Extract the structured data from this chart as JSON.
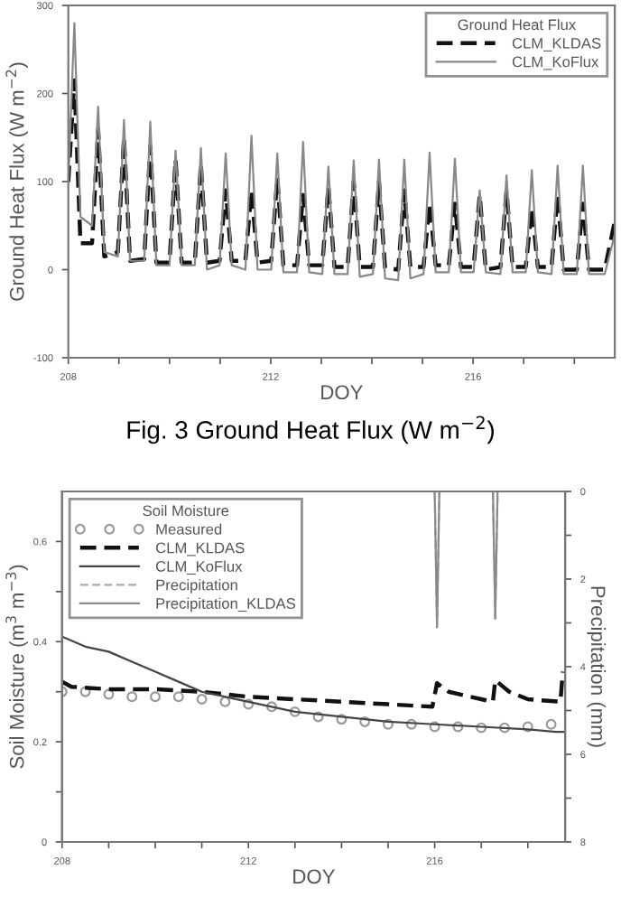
{
  "chart_data": [
    {
      "type": "line",
      "xlabel": "DOY",
      "ylabel": "Ground Heat Flux (W m$^{−2}$)",
      "legend_title": "Ground Heat Flux",
      "legend": "top right",
      "grid": false,
      "annotations": [
        "Fig. 3 Ground Heat Flux (W m$^{−2}$)"
      ],
      "xlim": [
        208,
        218.8
      ],
      "xticks": [
        208,
        {
          "value": 209,
          "label": null
        },
        {
          "value": 210,
          "label": null
        },
        {
          "value": 211,
          "label": null
        },
        212,
        {
          "value": 213,
          "label": null
        },
        {
          "value": 214,
          "label": null
        },
        {
          "value": 215,
          "label": null
        },
        216,
        {
          "value": 217,
          "label": null
        },
        {
          "value": 218,
          "label": null
        }
      ],
      "ylim": [
        -100,
        300
      ],
      "yticks": [
        -100,
        0,
        100,
        200,
        300
      ],
      "x": [
        208.0,
        208.12,
        208.24,
        208.47,
        208.59,
        208.71,
        208.98,
        209.1,
        209.22,
        209.5,
        209.62,
        209.74,
        210.0,
        210.12,
        210.24,
        210.5,
        210.62,
        210.74,
        210.99,
        211.11,
        211.23,
        211.5,
        211.62,
        211.74,
        212.01,
        212.13,
        212.25,
        212.52,
        212.64,
        212.76,
        213.02,
        213.14,
        213.26,
        213.52,
        213.64,
        213.76,
        214.02,
        214.14,
        214.26,
        214.52,
        214.64,
        214.76,
        215.02,
        215.14,
        215.26,
        215.52,
        215.64,
        215.76,
        216.01,
        216.13,
        216.25,
        216.54,
        216.66,
        216.78,
        217.04,
        217.16,
        217.28,
        217.55,
        217.67,
        217.79,
        218.05,
        218.17,
        218.29,
        218.6,
        218.8
      ],
      "series": [
        {
          "name": "CLM_KLDAS",
          "color": "#111111",
          "line_style": "dashed",
          "values": [
            100,
            215,
            30,
            30,
            160,
            15,
            20,
            150,
            10,
            12,
            140,
            8,
            8,
            125,
            8,
            8,
            120,
            8,
            10,
            90,
            10,
            10,
            90,
            8,
            10,
            105,
            5,
            5,
            85,
            5,
            5,
            95,
            3,
            3,
            100,
            3,
            3,
            100,
            2,
            0,
            90,
            3,
            3,
            75,
            5,
            5,
            75,
            3,
            3,
            85,
            0,
            3,
            90,
            3,
            3,
            70,
            3,
            3,
            85,
            0,
            0,
            75,
            0,
            0,
            55
          ]
        },
        {
          "name": "CLM_KoFlux",
          "color": "#888888",
          "line_style": "solid",
          "values": [
            100,
            280,
            60,
            50,
            185,
            20,
            15,
            170,
            10,
            10,
            168,
            5,
            5,
            135,
            5,
            5,
            138,
            0,
            5,
            132,
            5,
            0,
            152,
            0,
            0,
            132,
            -3,
            -3,
            145,
            -3,
            -5,
            117,
            -5,
            -5,
            124,
            -8,
            -5,
            125,
            -10,
            -12,
            125,
            -10,
            -5,
            133,
            -3,
            -3,
            126,
            -3,
            -3,
            90,
            -3,
            -5,
            107,
            -3,
            -3,
            113,
            -3,
            -5,
            118,
            -5,
            -5,
            118,
            -5,
            -5,
            40
          ]
        }
      ]
    },
    {
      "type": "line",
      "xlabel": "DOY",
      "ylabel": "Soil Moisture (m$^{3}$ m$^{−3}$)",
      "y2label": "Precipitation (mm)",
      "legend_title": "Soil Moisture",
      "legend": "top left",
      "grid": false,
      "xlim": [
        208,
        218.8
      ],
      "xticks": [
        208,
        {
          "value": 209,
          "label": null
        },
        {
          "value": 210,
          "label": null
        },
        {
          "value": 211,
          "label": null
        },
        212,
        {
          "value": 213,
          "label": null
        },
        {
          "value": 214,
          "label": null
        },
        {
          "value": 215,
          "label": null
        },
        216,
        {
          "value": 217,
          "label": null
        },
        {
          "value": 218,
          "label": null
        }
      ],
      "ylim": [
        0,
        0.7
      ],
      "yticks": [
        0,
        {
          "value": 0.1,
          "label": null
        },
        0.2,
        {
          "value": 0.3,
          "label": null
        },
        0.4,
        {
          "value": 0.5,
          "label": null
        },
        0.6
      ],
      "y2lim": [
        8,
        0
      ],
      "y2ticks": [
        0,
        {
          "value": 1,
          "label": null
        },
        2,
        {
          "value": 3,
          "label": null
        },
        4,
        {
          "value": 5,
          "label": null
        },
        6,
        {
          "value": 7,
          "label": null
        },
        8
      ],
      "series": [
        {
          "name": "Measured",
          "type": "scatter",
          "marker": "circle",
          "color": "#9a9a9a",
          "x": [
            208.0,
            208.5,
            209.0,
            209.5,
            210.0,
            210.5,
            211.0,
            211.5,
            212.0,
            212.5,
            213.0,
            213.5,
            214.0,
            214.5,
            215.0,
            215.5,
            216.0,
            216.5,
            217.0,
            217.5,
            218.0,
            218.5
          ],
          "values": [
            0.3,
            0.3,
            0.295,
            0.29,
            0.29,
            0.29,
            0.285,
            0.28,
            0.275,
            0.27,
            0.26,
            0.25,
            0.245,
            0.24,
            0.235,
            0.235,
            0.23,
            0.23,
            0.228,
            0.228,
            0.23,
            0.235
          ]
        },
        {
          "name": "CLM_KLDAS",
          "color": "#111111",
          "line_style": "dashed",
          "x": [
            208.0,
            208.2,
            209.0,
            210.0,
            211.0,
            212.0,
            213.0,
            214.0,
            215.0,
            215.95,
            216.05,
            216.3,
            217.0,
            217.25,
            217.3,
            217.6,
            218.0,
            218.7,
            218.75
          ],
          "values": [
            0.32,
            0.31,
            0.305,
            0.305,
            0.3,
            0.29,
            0.285,
            0.28,
            0.275,
            0.27,
            0.317,
            0.3,
            0.285,
            0.28,
            0.323,
            0.3,
            0.285,
            0.28,
            0.34
          ]
        },
        {
          "name": "CLM_KoFlux",
          "color": "#444444",
          "line_style": "solid",
          "x": [
            208.0,
            208.5,
            209.0,
            209.5,
            210.0,
            210.5,
            211.0,
            212.0,
            213.0,
            214.0,
            215.0,
            216.0,
            217.0,
            218.0,
            218.6,
            218.8
          ],
          "values": [
            0.41,
            0.39,
            0.38,
            0.36,
            0.34,
            0.32,
            0.3,
            0.28,
            0.26,
            0.25,
            0.24,
            0.235,
            0.23,
            0.225,
            0.22,
            0.22
          ]
        },
        {
          "name": "Precipitation",
          "color": "#aaaaaa",
          "line_style": "dashed",
          "axis": "y2",
          "x": [
            208.0,
            216.0,
            216.05,
            216.1,
            217.25,
            217.3,
            217.35,
            218.8
          ],
          "values": [
            0,
            0,
            3.1,
            0,
            0,
            2.9,
            0,
            0
          ]
        },
        {
          "name": "Precipitation_KLDAS",
          "color": "#8a8a8a",
          "line_style": "solid",
          "axis": "y2",
          "x": [
            208.0,
            216.0,
            216.05,
            216.1,
            217.25,
            217.3,
            217.35,
            218.8
          ],
          "values": [
            0,
            0,
            3.1,
            0,
            0,
            2.9,
            0,
            0
          ]
        }
      ]
    }
  ]
}
